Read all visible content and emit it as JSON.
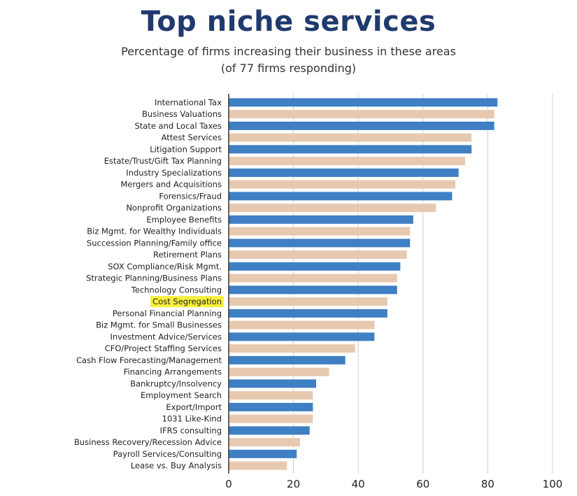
{
  "header": {
    "title": "Top niche services",
    "subtitle_line1": "Percentage of firms increasing their business in these areas",
    "subtitle_line2": "(of 77 firms responding)"
  },
  "colors": {
    "blue": "#3f7fc3",
    "tan": "#e7c9b0",
    "highlight": "#f7f03c",
    "grid": "#d0d0d0",
    "axis": "#333333"
  },
  "chart_data": {
    "type": "bar",
    "orientation": "horizontal",
    "title": "Top niche services",
    "subtitle": "Percentage of firms increasing their business in these areas (of 77 firms responding)",
    "xlim": [
      0,
      100
    ],
    "xticks": [
      0,
      20,
      40,
      60,
      80,
      100
    ],
    "grid": true,
    "highlighted_category": "Cost Segregation",
    "categories": [
      "International Tax",
      "Business Valuations",
      "State and Local Taxes",
      "Attest Services",
      "Litigation Support",
      "Estate/Trust/Gift Tax Planning",
      "Industry Specializations",
      "Mergers and Acquisitions",
      "Forensics/Fraud",
      "Nonprofit Organizations",
      "Employee Benefits",
      "Biz Mgmt. for Wealthy Individuals",
      "Succession Planning/Family office",
      "Retirement Plans",
      "SOX Compliance/Risk Mgmt.",
      "Strategic Planning/Business Plans",
      "Technology Consulting",
      "Cost Segregation",
      "Personal Financial Planning",
      "Biz Mgmt. for Small Businesses",
      "Investment Advice/Services",
      "CFO/Project Staffing Services",
      "Cash Flow Forecasting/Management",
      "Financing Arrangements",
      "Bankruptcy/Insolvency",
      "Employment Search",
      "Export/Import",
      "1031 Like-Kind",
      "IFRS consulting",
      "Business Recovery/Recession Advice",
      "Payroll Services/Consulting",
      "Lease vs. Buy Analysis"
    ],
    "values": [
      83,
      82,
      82,
      75,
      75,
      73,
      71,
      70,
      69,
      64,
      57,
      56,
      56,
      55,
      53,
      52,
      52,
      49,
      49,
      45,
      45,
      39,
      36,
      31,
      27,
      26,
      26,
      26,
      25,
      22,
      21,
      18
    ],
    "bar_colors": [
      "blue",
      "tan",
      "blue",
      "tan",
      "blue",
      "tan",
      "blue",
      "tan",
      "blue",
      "tan",
      "blue",
      "tan",
      "blue",
      "tan",
      "blue",
      "tan",
      "blue",
      "tan",
      "blue",
      "tan",
      "blue",
      "tan",
      "blue",
      "tan",
      "blue",
      "tan",
      "blue",
      "tan",
      "blue",
      "tan",
      "blue",
      "tan"
    ]
  }
}
